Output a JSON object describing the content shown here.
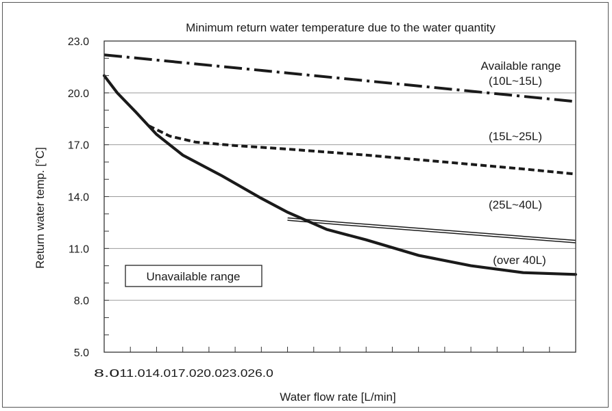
{
  "chart_data": {
    "type": "line",
    "title": "Minimum return water temperature due to the water quantity",
    "xlabel": "Water flow rate [L/min]",
    "ylabel": "Return water temp. [°C]",
    "xlim": [
      8.0,
      26.0
    ],
    "ylim": [
      5.0,
      23.0
    ],
    "x_tick_labels": [
      "8.0",
      "11.0",
      "14.0",
      "17.0",
      "20.0",
      "23.0",
      "26.0"
    ],
    "y_ticks": [
      5.0,
      8.0,
      11.0,
      14.0,
      17.0,
      20.0,
      23.0
    ],
    "y_tick_labels": [
      "5.0",
      "8.0",
      "11.0",
      "14.0",
      "17.0",
      "20.0",
      "23.0"
    ],
    "grid": "horizontal",
    "series": [
      {
        "name": "Available range (10L~15L)",
        "style": "dash-dot",
        "x": [
          8.0,
          26.0
        ],
        "y": [
          22.2,
          19.5
        ]
      },
      {
        "name": "(15L~25L)",
        "style": "dashed",
        "x": [
          9.7,
          10.5,
          11.5,
          13.0,
          15.0,
          18.0,
          21.0,
          24.0,
          26.0
        ],
        "y": [
          18.1,
          17.5,
          17.15,
          16.95,
          16.75,
          16.4,
          16.0,
          15.6,
          15.3
        ]
      },
      {
        "name": "(25L~40L)",
        "style": "double",
        "x": [
          15.0,
          17.0,
          20.0,
          23.0,
          26.0
        ],
        "y": [
          12.7,
          12.45,
          12.1,
          11.75,
          11.4
        ]
      },
      {
        "name": "(over 40L)",
        "style": "solid-thick",
        "x": [
          8.0,
          8.5,
          9.2,
          10.0,
          11.0,
          12.5,
          14.0,
          15.0,
          16.5,
          18.0,
          20.0,
          22.0,
          24.0,
          26.0
        ],
        "y": [
          21.0,
          20.0,
          18.9,
          17.6,
          16.4,
          15.2,
          13.9,
          13.1,
          12.1,
          11.5,
          10.6,
          10.0,
          9.6,
          9.5
        ]
      }
    ],
    "region_label": "Unavailable range",
    "legend": "inline"
  }
}
